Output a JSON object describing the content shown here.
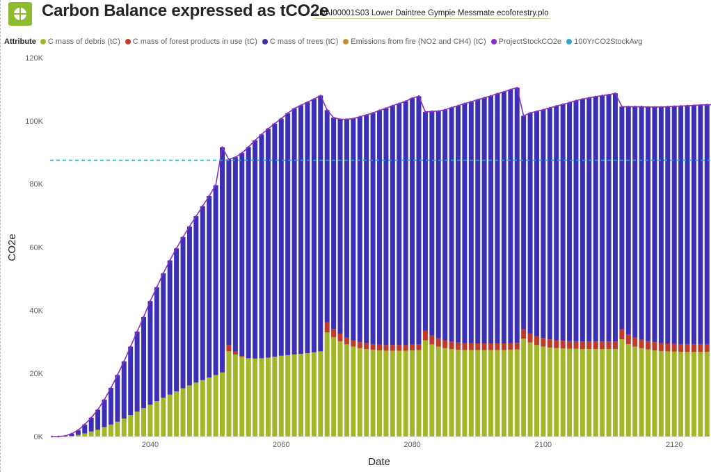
{
  "header": {
    "title": "Carbon Balance expressed as tCO2e",
    "subtitle": "- DAI00001S03 Lower Daintree Gympie Messmate ecoforestry.plo"
  },
  "legend": {
    "title": "Attribute"
  },
  "colors": {
    "debris": "#a3b62a",
    "products": "#c0392b",
    "trees": "#3a2fb5",
    "fire": "#c0902c",
    "project": "#8a2fc4",
    "avg": "#2ba8c9",
    "brand": "#8dbb2f"
  },
  "chart_data": {
    "type": "bar",
    "stacked": true,
    "xlabel": "Date",
    "ylabel": "CO2e",
    "x_start": 2025,
    "x_end": 2126,
    "ylim": [
      0,
      120000
    ],
    "y_ticks": [
      0,
      20000,
      40000,
      60000,
      80000,
      100000,
      120000
    ],
    "y_tick_labels": [
      "0K",
      "20K",
      "40K",
      "60K",
      "80K",
      "100K",
      "120K"
    ],
    "x_ticks": [
      2040,
      2060,
      2080,
      2100,
      2120
    ],
    "grid": false,
    "legend_position": "top-left",
    "series": [
      {
        "name": "C mass of debris (tC)",
        "color_key": "debris",
        "keyframes": [
          [
            2025,
            0
          ],
          [
            2027,
            0
          ],
          [
            2028,
            200
          ],
          [
            2029,
            500
          ],
          [
            2030,
            1000
          ],
          [
            2031,
            1600
          ],
          [
            2032,
            2200
          ],
          [
            2033,
            3000
          ],
          [
            2034,
            3800
          ],
          [
            2035,
            4700
          ],
          [
            2036,
            5700
          ],
          [
            2037,
            6800
          ],
          [
            2038,
            7900
          ],
          [
            2039,
            9000
          ],
          [
            2040,
            10100
          ],
          [
            2041,
            11200
          ],
          [
            2042,
            12300
          ],
          [
            2043,
            13300
          ],
          [
            2044,
            14300
          ],
          [
            2045,
            15300
          ],
          [
            2046,
            16200
          ],
          [
            2047,
            17100
          ],
          [
            2048,
            17900
          ],
          [
            2049,
            18700
          ],
          [
            2050,
            19500
          ],
          [
            2051,
            20300
          ],
          [
            2052,
            27000
          ],
          [
            2053,
            26000
          ],
          [
            2054,
            25200
          ],
          [
            2055,
            24800
          ],
          [
            2056,
            24700
          ],
          [
            2057,
            24800
          ],
          [
            2058,
            25000
          ],
          [
            2059,
            25300
          ],
          [
            2060,
            25600
          ],
          [
            2061,
            25800
          ],
          [
            2062,
            26000
          ],
          [
            2063,
            26200
          ],
          [
            2064,
            26400
          ],
          [
            2065,
            26700
          ],
          [
            2066,
            27000
          ],
          [
            2067,
            33000
          ],
          [
            2068,
            31500
          ],
          [
            2069,
            30200
          ],
          [
            2070,
            29200
          ],
          [
            2071,
            28500
          ],
          [
            2072,
            28000
          ],
          [
            2073,
            27700
          ],
          [
            2074,
            27500
          ],
          [
            2075,
            27300
          ],
          [
            2076,
            27200
          ],
          [
            2077,
            27200
          ],
          [
            2078,
            27200
          ],
          [
            2079,
            27200
          ],
          [
            2080,
            27300
          ],
          [
            2081,
            27400
          ],
          [
            2082,
            30500
          ],
          [
            2083,
            29200
          ],
          [
            2084,
            28500
          ],
          [
            2085,
            28000
          ],
          [
            2086,
            27700
          ],
          [
            2087,
            27500
          ],
          [
            2088,
            27400
          ],
          [
            2089,
            27400
          ],
          [
            2090,
            27400
          ],
          [
            2091,
            27400
          ],
          [
            2092,
            27400
          ],
          [
            2093,
            27400
          ],
          [
            2094,
            27400
          ],
          [
            2095,
            27500
          ],
          [
            2096,
            27600
          ],
          [
            2097,
            31000
          ],
          [
            2098,
            29800
          ],
          [
            2099,
            29000
          ],
          [
            2100,
            28500
          ],
          [
            2101,
            28200
          ],
          [
            2102,
            28000
          ],
          [
            2103,
            27900
          ],
          [
            2104,
            27800
          ],
          [
            2105,
            27800
          ],
          [
            2106,
            27700
          ],
          [
            2107,
            27700
          ],
          [
            2108,
            27700
          ],
          [
            2109,
            27700
          ],
          [
            2110,
            27700
          ],
          [
            2111,
            27700
          ],
          [
            2112,
            30800
          ],
          [
            2113,
            29300
          ],
          [
            2114,
            28500
          ],
          [
            2115,
            28000
          ],
          [
            2116,
            27600
          ],
          [
            2117,
            27300
          ],
          [
            2118,
            27100
          ],
          [
            2119,
            27000
          ],
          [
            2120,
            26900
          ],
          [
            2121,
            26800
          ],
          [
            2122,
            26800
          ],
          [
            2123,
            26800
          ],
          [
            2124,
            26800
          ],
          [
            2125,
            26800
          ],
          [
            2126,
            26800
          ]
        ]
      },
      {
        "name": "C mass of forest products in use (tC)",
        "color_key": "products",
        "keyframes": [
          [
            2025,
            0
          ],
          [
            2051,
            0
          ],
          [
            2052,
            2000
          ],
          [
            2053,
            900
          ],
          [
            2054,
            300
          ],
          [
            2055,
            0
          ],
          [
            2066,
            0
          ],
          [
            2067,
            3200
          ],
          [
            2068,
            2600
          ],
          [
            2069,
            2400
          ],
          [
            2070,
            2100
          ],
          [
            2071,
            2000
          ],
          [
            2072,
            1900
          ],
          [
            2073,
            1850
          ],
          [
            2074,
            1800
          ],
          [
            2075,
            1800
          ],
          [
            2081,
            1800
          ],
          [
            2082,
            3000
          ],
          [
            2083,
            2800
          ],
          [
            2084,
            2600
          ],
          [
            2085,
            2500
          ],
          [
            2086,
            2400
          ],
          [
            2087,
            2300
          ],
          [
            2088,
            2200
          ],
          [
            2090,
            2100
          ],
          [
            2096,
            2100
          ],
          [
            2097,
            3000
          ],
          [
            2098,
            2900
          ],
          [
            2099,
            2800
          ],
          [
            2100,
            2700
          ],
          [
            2101,
            2600
          ],
          [
            2102,
            2500
          ],
          [
            2104,
            2400
          ],
          [
            2111,
            2400
          ],
          [
            2112,
            3200
          ],
          [
            2113,
            3000
          ],
          [
            2114,
            2800
          ],
          [
            2115,
            2700
          ],
          [
            2116,
            2600
          ],
          [
            2117,
            2600
          ],
          [
            2118,
            2500
          ],
          [
            2126,
            2500
          ]
        ]
      },
      {
        "name": "C mass of trees (tC)",
        "color_key": "trees",
        "keyframes": [
          [
            2025,
            0
          ],
          [
            2026,
            0
          ],
          [
            2027,
            200
          ],
          [
            2028,
            700
          ],
          [
            2029,
            1500
          ],
          [
            2030,
            2800
          ],
          [
            2031,
            4400
          ],
          [
            2032,
            6300
          ],
          [
            2033,
            8700
          ],
          [
            2034,
            11600
          ],
          [
            2035,
            14800
          ],
          [
            2036,
            18100
          ],
          [
            2037,
            21700
          ],
          [
            2038,
            25300
          ],
          [
            2039,
            28900
          ],
          [
            2040,
            32800
          ],
          [
            2041,
            36100
          ],
          [
            2042,
            39400
          ],
          [
            2043,
            42500
          ],
          [
            2044,
            45300
          ],
          [
            2045,
            47900
          ],
          [
            2046,
            50300
          ],
          [
            2047,
            52700
          ],
          [
            2048,
            55100
          ],
          [
            2049,
            57500
          ],
          [
            2050,
            60100
          ],
          [
            2051,
            71300
          ],
          [
            2052,
            58800
          ],
          [
            2053,
            61600
          ],
          [
            2054,
            64300
          ],
          [
            2055,
            66900
          ],
          [
            2056,
            69100
          ],
          [
            2057,
            70900
          ],
          [
            2058,
            72500
          ],
          [
            2059,
            73800
          ],
          [
            2060,
            75100
          ],
          [
            2061,
            76600
          ],
          [
            2062,
            77900
          ],
          [
            2063,
            78700
          ],
          [
            2064,
            79500
          ],
          [
            2065,
            80200
          ],
          [
            2066,
            81000
          ],
          [
            2067,
            67200
          ],
          [
            2068,
            66900
          ],
          [
            2069,
            67900
          ],
          [
            2070,
            69200
          ],
          [
            2071,
            70200
          ],
          [
            2072,
            71400
          ],
          [
            2073,
            72300
          ],
          [
            2074,
            73200
          ],
          [
            2075,
            74200
          ],
          [
            2076,
            75000
          ],
          [
            2077,
            75800
          ],
          [
            2078,
            76500
          ],
          [
            2079,
            77200
          ],
          [
            2080,
            78100
          ],
          [
            2081,
            78600
          ],
          [
            2082,
            69300
          ],
          [
            2083,
            71000
          ],
          [
            2084,
            72000
          ],
          [
            2085,
            73000
          ],
          [
            2086,
            74100
          ],
          [
            2087,
            75000
          ],
          [
            2088,
            75900
          ],
          [
            2089,
            76500
          ],
          [
            2090,
            77200
          ],
          [
            2091,
            77800
          ],
          [
            2092,
            78400
          ],
          [
            2093,
            79100
          ],
          [
            2094,
            79700
          ],
          [
            2095,
            80300
          ],
          [
            2096,
            80800
          ],
          [
            2097,
            67600
          ],
          [
            2098,
            69800
          ],
          [
            2099,
            71200
          ],
          [
            2100,
            72300
          ],
          [
            2101,
            73300
          ],
          [
            2102,
            74200
          ],
          [
            2103,
            74900
          ],
          [
            2104,
            75600
          ],
          [
            2105,
            76200
          ],
          [
            2106,
            76800
          ],
          [
            2107,
            77200
          ],
          [
            2108,
            77600
          ],
          [
            2109,
            77900
          ],
          [
            2110,
            78200
          ],
          [
            2111,
            78600
          ],
          [
            2112,
            70500
          ],
          [
            2113,
            72200
          ],
          [
            2114,
            73200
          ],
          [
            2115,
            73800
          ],
          [
            2116,
            74200
          ],
          [
            2117,
            74500
          ],
          [
            2118,
            74800
          ],
          [
            2119,
            75000
          ],
          [
            2120,
            75200
          ],
          [
            2121,
            75400
          ],
          [
            2122,
            75500
          ],
          [
            2123,
            75600
          ],
          [
            2124,
            75700
          ],
          [
            2125,
            75800
          ],
          [
            2126,
            75800
          ]
        ]
      },
      {
        "name": "Emissions from fire (NO2 and CH4) (tC)",
        "color_key": "fire",
        "keyframes": [
          [
            2025,
            0
          ],
          [
            2126,
            0
          ]
        ]
      },
      {
        "name": "ProjectStockCO2e",
        "color_key": "project",
        "type": "line",
        "derived": "sum of stacked series"
      },
      {
        "name": "100YrCO2StockAvg",
        "color_key": "avg",
        "type": "line",
        "style": "dashed",
        "value": 87500
      }
    ]
  }
}
